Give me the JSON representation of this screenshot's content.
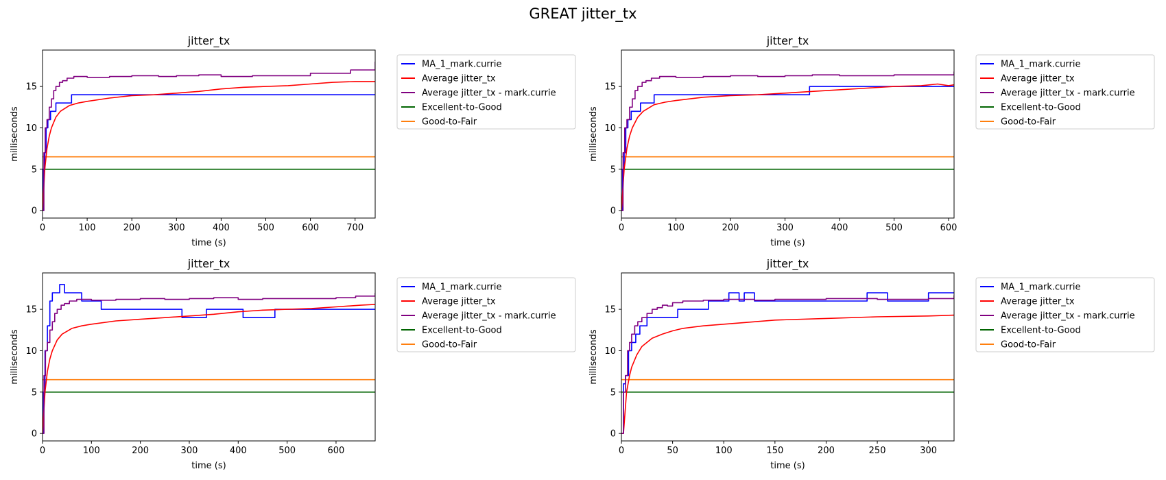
{
  "figure": {
    "title": "GREAT jitter_tx"
  },
  "colors": {
    "ma": "#0000ff",
    "avg": "#ff0000",
    "avg_user": "#800080",
    "excellent_good": "#006400",
    "good_fair": "#ff7f0e"
  },
  "chart_data": [
    {
      "type": "line",
      "title": "jitter_tx",
      "xlabel": "time (s)",
      "ylabel": "milliseconds",
      "xlim": [
        0,
        745
      ],
      "ylim": [
        -0.9,
        19.4
      ],
      "xticks": [
        0,
        100,
        200,
        300,
        400,
        500,
        600,
        700
      ],
      "yticks": [
        0,
        5,
        10,
        15
      ],
      "legend": "outside-right",
      "series": [
        {
          "name": "MA_1_mark.currie",
          "color": "#0000ff",
          "step": true,
          "x": [
            0,
            2,
            5,
            8,
            12,
            18,
            25,
            30,
            45,
            65,
            745
          ],
          "y": [
            0,
            5,
            7,
            10,
            11,
            12,
            12,
            13,
            13,
            14,
            14
          ]
        },
        {
          "name": "Average jitter_tx",
          "color": "#ff0000",
          "x": [
            0,
            5,
            10,
            15,
            20,
            30,
            40,
            60,
            80,
            100,
            150,
            200,
            250,
            300,
            350,
            400,
            450,
            500,
            550,
            600,
            650,
            700,
            745
          ],
          "y": [
            0,
            5,
            7.5,
            9,
            10,
            11.3,
            12,
            12.7,
            13,
            13.2,
            13.6,
            13.9,
            14,
            14.2,
            14.4,
            14.7,
            14.9,
            15,
            15.1,
            15.3,
            15.5,
            15.6,
            15.6
          ]
        },
        {
          "name": "Average jitter_tx - mark.currie",
          "color": "#800080",
          "step": true,
          "x": [
            0,
            3,
            6,
            10,
            15,
            20,
            25,
            30,
            38,
            45,
            55,
            70,
            100,
            150,
            200,
            260,
            300,
            350,
            400,
            470,
            520,
            600,
            650,
            690,
            740,
            745
          ],
          "y": [
            0,
            7,
            10,
            11,
            12.5,
            13.5,
            14.5,
            15,
            15.5,
            15.7,
            16,
            16.2,
            16.1,
            16.2,
            16.3,
            16.2,
            16.3,
            16.4,
            16.2,
            16.3,
            16.3,
            16.6,
            16.6,
            17,
            17,
            18
          ]
        },
        {
          "name": "Excellent-to-Good",
          "color": "#006400",
          "x": [
            0,
            745
          ],
          "y": [
            5,
            5
          ]
        },
        {
          "name": "Good-to-Fair",
          "color": "#ff7f0e",
          "x": [
            0,
            745
          ],
          "y": [
            6.5,
            6.5
          ]
        }
      ]
    },
    {
      "type": "line",
      "title": "jitter_tx",
      "xlabel": "time (s)",
      "ylabel": "milliseconds",
      "xlim": [
        0,
        610
      ],
      "ylim": [
        -0.9,
        19.4
      ],
      "xticks": [
        0,
        100,
        200,
        300,
        400,
        500,
        600
      ],
      "yticks": [
        0,
        5,
        10,
        15
      ],
      "legend": "outside-right",
      "series": [
        {
          "name": "MA_1_mark.currie",
          "color": "#0000ff",
          "step": true,
          "x": [
            0,
            2,
            5,
            8,
            12,
            18,
            25,
            35,
            45,
            60,
            340,
            345,
            610
          ],
          "y": [
            0,
            5,
            7,
            10,
            11,
            12,
            12,
            13,
            13,
            14,
            14,
            15,
            15
          ]
        },
        {
          "name": "Average jitter_tx",
          "color": "#ff0000",
          "x": [
            0,
            5,
            10,
            15,
            20,
            30,
            40,
            60,
            80,
            100,
            150,
            200,
            250,
            300,
            350,
            400,
            450,
            500,
            550,
            580,
            600,
            610
          ],
          "y": [
            0,
            5,
            7.5,
            9,
            10,
            11.3,
            12,
            12.8,
            13.1,
            13.3,
            13.7,
            13.9,
            14,
            14.2,
            14.4,
            14.6,
            14.8,
            15,
            15.1,
            15.3,
            15.1,
            15.2
          ]
        },
        {
          "name": "Average jitter_tx - mark.currie",
          "color": "#800080",
          "step": true,
          "x": [
            0,
            3,
            6,
            10,
            15,
            20,
            25,
            30,
            38,
            45,
            55,
            70,
            100,
            150,
            200,
            250,
            300,
            350,
            400,
            450,
            500,
            550,
            608,
            610
          ],
          "y": [
            0,
            7,
            10,
            11,
            12.5,
            13.5,
            14.5,
            15,
            15.5,
            15.7,
            16,
            16.2,
            16.1,
            16.2,
            16.3,
            16.2,
            16.3,
            16.4,
            16.3,
            16.3,
            16.4,
            16.4,
            16.4,
            16.8
          ]
        },
        {
          "name": "Excellent-to-Good",
          "color": "#006400",
          "x": [
            0,
            610
          ],
          "y": [
            5,
            5
          ]
        },
        {
          "name": "Good-to-Fair",
          "color": "#ff7f0e",
          "x": [
            0,
            610
          ],
          "y": [
            6.5,
            6.5
          ]
        }
      ]
    },
    {
      "type": "line",
      "title": "jitter_tx",
      "xlabel": "time (s)",
      "ylabel": "milliseconds",
      "xlim": [
        0,
        680
      ],
      "ylim": [
        -0.9,
        19.4
      ],
      "xticks": [
        0,
        100,
        200,
        300,
        400,
        500,
        600
      ],
      "yticks": [
        0,
        5,
        10,
        15
      ],
      "legend": "outside-right",
      "series": [
        {
          "name": "MA_1_mark.currie",
          "color": "#0000ff",
          "step": true,
          "x": [
            0,
            2,
            5,
            10,
            15,
            20,
            35,
            45,
            80,
            90,
            120,
            285,
            335,
            410,
            475,
            680
          ],
          "y": [
            0,
            5,
            10,
            13,
            16,
            17,
            18,
            17,
            16,
            16,
            15,
            14,
            15,
            14,
            15,
            15
          ]
        },
        {
          "name": "Average jitter_tx",
          "color": "#ff0000",
          "x": [
            0,
            5,
            10,
            15,
            20,
            30,
            40,
            60,
            80,
            100,
            150,
            200,
            250,
            300,
            350,
            400,
            450,
            500,
            550,
            600,
            650,
            680
          ],
          "y": [
            0,
            5,
            7.5,
            9,
            10,
            11.3,
            12,
            12.7,
            13,
            13.2,
            13.6,
            13.8,
            14,
            14.2,
            14.4,
            14.7,
            14.9,
            15,
            15.1,
            15.3,
            15.5,
            15.6
          ]
        },
        {
          "name": "Average jitter_tx - mark.currie",
          "color": "#800080",
          "step": true,
          "x": [
            0,
            3,
            6,
            10,
            15,
            20,
            25,
            30,
            38,
            45,
            55,
            70,
            100,
            150,
            200,
            250,
            300,
            350,
            400,
            450,
            500,
            550,
            600,
            640,
            678,
            680
          ],
          "y": [
            0,
            7,
            10,
            11,
            12.5,
            13.5,
            14.5,
            15,
            15.5,
            15.7,
            16,
            16.2,
            16.1,
            16.2,
            16.3,
            16.2,
            16.3,
            16.4,
            16.2,
            16.3,
            16.3,
            16.3,
            16.4,
            16.6,
            16.6,
            17
          ]
        },
        {
          "name": "Excellent-to-Good",
          "color": "#006400",
          "x": [
            0,
            680
          ],
          "y": [
            5,
            5
          ]
        },
        {
          "name": "Good-to-Fair",
          "color": "#ff7f0e",
          "x": [
            0,
            680
          ],
          "y": [
            6.5,
            6.5
          ]
        }
      ]
    },
    {
      "type": "line",
      "title": "jitter_tx",
      "xlabel": "time (s)",
      "ylabel": "milliseconds",
      "xlim": [
        0,
        325
      ],
      "ylim": [
        -0.9,
        19.4
      ],
      "xticks": [
        0,
        50,
        100,
        150,
        200,
        250,
        300
      ],
      "yticks": [
        0,
        5,
        10,
        15
      ],
      "legend": "outside-right",
      "series": [
        {
          "name": "MA_1_mark.currie",
          "color": "#0000ff",
          "step": true,
          "x": [
            0,
            2,
            4,
            7,
            10,
            14,
            18,
            25,
            32,
            55,
            85,
            100,
            105,
            115,
            120,
            130,
            210,
            240,
            260,
            285,
            300,
            325
          ],
          "y": [
            0,
            6,
            7,
            10,
            11,
            12,
            13,
            14,
            14,
            15,
            16,
            16,
            17,
            16,
            17,
            16,
            16,
            17,
            16,
            16,
            17,
            17
          ]
        },
        {
          "name": "Average jitter_tx",
          "color": "#ff0000",
          "x": [
            0,
            2,
            5,
            8,
            10,
            15,
            20,
            30,
            40,
            50,
            60,
            80,
            100,
            120,
            150,
            200,
            250,
            300,
            325
          ],
          "y": [
            0,
            0,
            5,
            7,
            8,
            9.5,
            10.5,
            11.5,
            12,
            12.4,
            12.7,
            13,
            13.2,
            13.4,
            13.7,
            13.9,
            14.1,
            14.2,
            14.3
          ]
        },
        {
          "name": "Average jitter_tx - mark.currie",
          "color": "#800080",
          "step": true,
          "x": [
            0,
            2,
            4,
            6,
            8,
            10,
            13,
            16,
            20,
            25,
            30,
            35,
            40,
            45,
            50,
            60,
            80,
            100,
            130,
            150,
            200,
            250,
            300,
            323,
            325
          ],
          "y": [
            0,
            5,
            7,
            10,
            11,
            12,
            13,
            13.5,
            14,
            14.5,
            15,
            15.2,
            15.5,
            15.4,
            15.8,
            16,
            16.1,
            16.2,
            16.1,
            16.2,
            16.3,
            16.2,
            16.3,
            16.3,
            16.7
          ]
        },
        {
          "name": "Excellent-to-Good",
          "color": "#006400",
          "x": [
            0,
            325
          ],
          "y": [
            5,
            5
          ]
        },
        {
          "name": "Good-to-Fair",
          "color": "#ff7f0e",
          "x": [
            0,
            325
          ],
          "y": [
            6.5,
            6.5
          ]
        }
      ]
    }
  ]
}
